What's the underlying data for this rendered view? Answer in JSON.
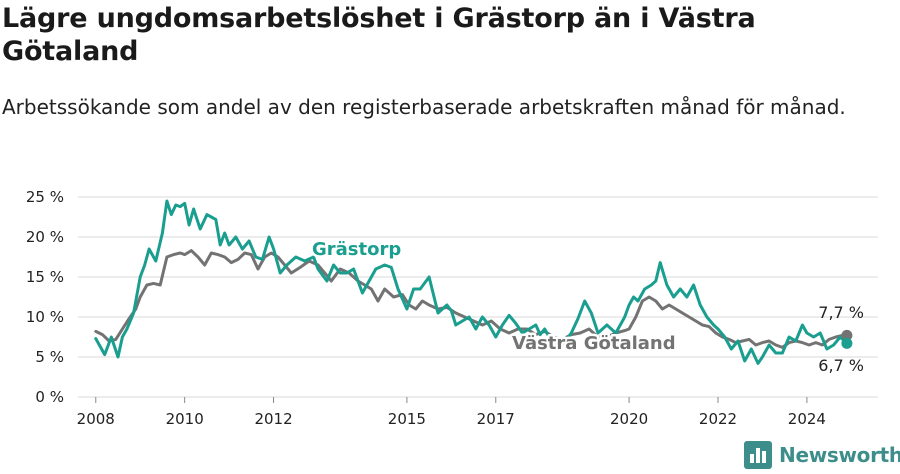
{
  "header": {
    "title": "Lägre ungdomsarbetslöshet i Grästorp än i Västra Götaland",
    "subtitle": "Arbetssökande som andel av den registerbaserade arbetskraften månad för månad."
  },
  "colors": {
    "grastorp": "#1a9e8f",
    "vastra_gotaland": "#737373",
    "brand": "#3d8e8a"
  },
  "brand": {
    "name": "Newsworthy",
    "icon": "bar-chart-icon"
  },
  "chart_data": {
    "type": "line",
    "title": "Lägre ungdomsarbetslöshet i Grästorp än i Västra Götaland",
    "xlabel": "",
    "ylabel": "",
    "xlim": [
      2007.6,
      2025.6
    ],
    "ylim": [
      0,
      25
    ],
    "grid": true,
    "y_ticks": [
      0,
      5,
      10,
      15,
      20,
      25
    ],
    "y_tick_labels": [
      "0 %",
      "5 %",
      "10 %",
      "15 %",
      "20 %",
      "25 %"
    ],
    "x_ticks": [
      2008,
      2010,
      2012,
      2015,
      2017,
      2020,
      2022,
      2024
    ],
    "x_tick_labels": [
      "2008",
      "2010",
      "2012",
      "2015",
      "2017",
      "2020",
      "2022",
      "2024"
    ],
    "series": [
      {
        "name": "Grästorp",
        "color": "#1a9e8f",
        "label": "Grästorp",
        "end_label": "6,7 %",
        "x": [
          2008.0,
          2008.2,
          2008.35,
          2008.5,
          2008.6,
          2008.7,
          2008.85,
          2009.0,
          2009.1,
          2009.2,
          2009.35,
          2009.5,
          2009.6,
          2009.7,
          2009.8,
          2009.9,
          2010.0,
          2010.1,
          2010.2,
          2010.35,
          2010.5,
          2010.6,
          2010.7,
          2010.8,
          2010.9,
          2011.0,
          2011.15,
          2011.3,
          2011.45,
          2011.6,
          2011.75,
          2011.9,
          2012.0,
          2012.15,
          2012.3,
          2012.5,
          2012.7,
          2012.9,
          2013.0,
          2013.2,
          2013.35,
          2013.5,
          2013.65,
          2013.8,
          2014.0,
          2014.15,
          2014.3,
          2014.5,
          2014.65,
          2014.8,
          2015.0,
          2015.15,
          2015.3,
          2015.5,
          2015.7,
          2015.9,
          2016.0,
          2016.1,
          2016.25,
          2016.4,
          2016.55,
          2016.7,
          2016.85,
          2017.0,
          2017.15,
          2017.3,
          2017.45,
          2017.6,
          2017.75,
          2017.9,
          2018.0,
          2018.1,
          2018.3,
          2018.5,
          2018.7,
          2018.85,
          2019.0,
          2019.15,
          2019.3,
          2019.5,
          2019.7,
          2019.9,
          2020.0,
          2020.1,
          2020.2,
          2020.35,
          2020.5,
          2020.6,
          2020.7,
          2020.85,
          2021.0,
          2021.15,
          2021.3,
          2021.45,
          2021.6,
          2021.75,
          2021.9,
          2022.0,
          2022.15,
          2022.3,
          2022.45,
          2022.6,
          2022.75,
          2022.9,
          2023.0,
          2023.15,
          2023.3,
          2023.45,
          2023.6,
          2023.75,
          2023.9,
          2024.0,
          2024.15,
          2024.3,
          2024.45,
          2024.6,
          2024.75,
          2024.9
        ],
        "values": [
          7.3,
          5.3,
          7.5,
          5.0,
          7.5,
          8.5,
          10.5,
          15.0,
          16.5,
          18.5,
          17.0,
          20.5,
          24.5,
          22.8,
          24.0,
          23.8,
          24.2,
          21.5,
          23.5,
          21.0,
          22.8,
          22.5,
          22.2,
          19.0,
          20.5,
          19.0,
          20.0,
          18.5,
          19.5,
          17.5,
          17.2,
          20.0,
          18.5,
          15.5,
          16.5,
          17.5,
          17.0,
          17.5,
          16.0,
          14.5,
          16.5,
          15.5,
          15.5,
          16.0,
          13.0,
          14.5,
          16.0,
          16.5,
          16.2,
          13.5,
          11.0,
          13.5,
          13.5,
          15.0,
          10.5,
          11.5,
          10.8,
          9.0,
          9.5,
          10.0,
          8.5,
          10.0,
          9.0,
          7.5,
          9.0,
          10.2,
          9.2,
          8.0,
          8.5,
          9.0,
          7.8,
          8.5,
          6.5,
          6.5,
          8.0,
          9.8,
          12.0,
          10.5,
          8.0,
          9.0,
          8.0,
          10.0,
          11.5,
          12.5,
          12.0,
          13.5,
          14.0,
          14.5,
          16.8,
          14.0,
          12.5,
          13.5,
          12.5,
          14.0,
          11.5,
          10.0,
          9.0,
          8.5,
          7.5,
          6.0,
          7.0,
          4.5,
          6.0,
          4.2,
          5.0,
          6.5,
          5.5,
          5.5,
          7.5,
          7.0,
          9.0,
          8.0,
          7.5,
          8.0,
          6.0,
          6.5,
          7.5,
          6.7
        ]
      },
      {
        "name": "Västra Götaland",
        "color": "#737373",
        "label": "Västra Götaland",
        "end_label": "7,7 %",
        "x": [
          2008.0,
          2008.15,
          2008.3,
          2008.45,
          2008.6,
          2008.75,
          2008.9,
          2009.0,
          2009.15,
          2009.3,
          2009.45,
          2009.6,
          2009.75,
          2009.9,
          2010.0,
          2010.15,
          2010.3,
          2010.45,
          2010.6,
          2010.75,
          2010.9,
          2011.05,
          2011.2,
          2011.35,
          2011.5,
          2011.65,
          2011.8,
          2011.95,
          2012.1,
          2012.25,
          2012.4,
          2012.6,
          2012.8,
          2013.0,
          2013.15,
          2013.3,
          2013.5,
          2013.7,
          2013.9,
          2014.05,
          2014.2,
          2014.35,
          2014.5,
          2014.7,
          2014.9,
          2015.05,
          2015.2,
          2015.35,
          2015.5,
          2015.7,
          2015.9,
          2016.1,
          2016.3,
          2016.5,
          2016.7,
          2016.9,
          2017.1,
          2017.3,
          2017.5,
          2017.7,
          2017.9,
          2018.1,
          2018.3,
          2018.5,
          2018.7,
          2018.9,
          2019.1,
          2019.3,
          2019.5,
          2019.7,
          2019.9,
          2020.0,
          2020.15,
          2020.3,
          2020.45,
          2020.6,
          2020.75,
          2020.9,
          2021.05,
          2021.2,
          2021.35,
          2021.5,
          2021.65,
          2021.8,
          2021.95,
          2022.1,
          2022.25,
          2022.4,
          2022.55,
          2022.7,
          2022.85,
          2023.0,
          2023.15,
          2023.3,
          2023.45,
          2023.6,
          2023.75,
          2023.9,
          2024.05,
          2024.2,
          2024.35,
          2024.5,
          2024.65,
          2024.8,
          2024.9
        ],
        "values": [
          8.2,
          7.8,
          7.0,
          7.2,
          8.5,
          9.8,
          11.0,
          12.5,
          14.0,
          14.2,
          14.0,
          17.5,
          17.8,
          18.0,
          17.8,
          18.3,
          17.5,
          16.5,
          18.0,
          17.8,
          17.5,
          16.8,
          17.2,
          18.0,
          17.8,
          16.0,
          17.5,
          18.0,
          17.5,
          16.5,
          15.5,
          16.2,
          17.0,
          16.5,
          15.5,
          14.5,
          16.0,
          15.5,
          14.5,
          14.0,
          13.5,
          12.0,
          13.5,
          12.5,
          12.8,
          11.5,
          11.0,
          12.0,
          11.5,
          11.0,
          11.2,
          10.5,
          10.0,
          9.5,
          9.0,
          9.5,
          8.5,
          8.0,
          8.5,
          8.5,
          7.8,
          8.2,
          7.5,
          7.2,
          7.8,
          8.0,
          8.5,
          7.5,
          7.5,
          8.0,
          8.3,
          8.5,
          10.0,
          12.0,
          12.5,
          12.0,
          11.0,
          11.5,
          11.0,
          10.5,
          10.0,
          9.5,
          9.0,
          8.8,
          8.0,
          7.5,
          7.2,
          6.8,
          7.0,
          7.2,
          6.5,
          6.8,
          7.0,
          6.5,
          6.2,
          6.8,
          7.0,
          6.8,
          6.5,
          6.8,
          6.5,
          7.2,
          7.5,
          7.7,
          7.7
        ]
      }
    ]
  }
}
